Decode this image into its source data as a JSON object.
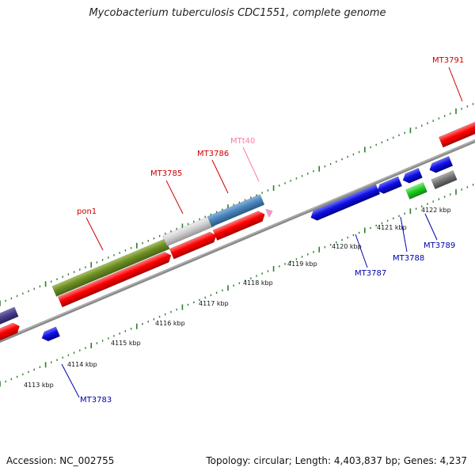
{
  "title": "Mycobacterium tuberculosis CDC1551, complete genome",
  "footer": {
    "accession": "Accession: NC_002755",
    "stats": "Topology: circular; Length: 4,403,837 bp; Genes: 4,237"
  },
  "colors": {
    "backbone": "#888888",
    "ticks": "#2e7d2e",
    "forward_label": "#cc0000",
    "reverse_label": "#0000aa",
    "rna_label": "#ff77aa"
  },
  "kbp_labels": [
    "4113 kbp",
    "4114 kbp",
    "4115 kbp",
    "4116 kbp",
    "4117 kbp",
    "4118 kbp",
    "4119 kbp",
    "4120 kbp",
    "4121 kbp",
    "4122 kbp"
  ],
  "gene_labels": [
    {
      "id": "label-pon1",
      "text": "pon1",
      "strand": "forward"
    },
    {
      "id": "label-mt3785",
      "text": "MT3785",
      "strand": "forward"
    },
    {
      "id": "label-mt3786",
      "text": "MT3786",
      "strand": "forward"
    },
    {
      "id": "label-mtt40",
      "text": "MTt40",
      "strand": "rna"
    },
    {
      "id": "label-mt3791",
      "text": "MT3791",
      "strand": "forward"
    },
    {
      "id": "label-mt3783",
      "text": "MT3783",
      "strand": "reverse"
    },
    {
      "id": "label-mt3787",
      "text": "MT3787",
      "strand": "reverse"
    },
    {
      "id": "label-mt3788",
      "text": "MT3788",
      "strand": "reverse"
    },
    {
      "id": "label-mt3789",
      "text": "MT3789",
      "strand": "reverse"
    }
  ]
}
